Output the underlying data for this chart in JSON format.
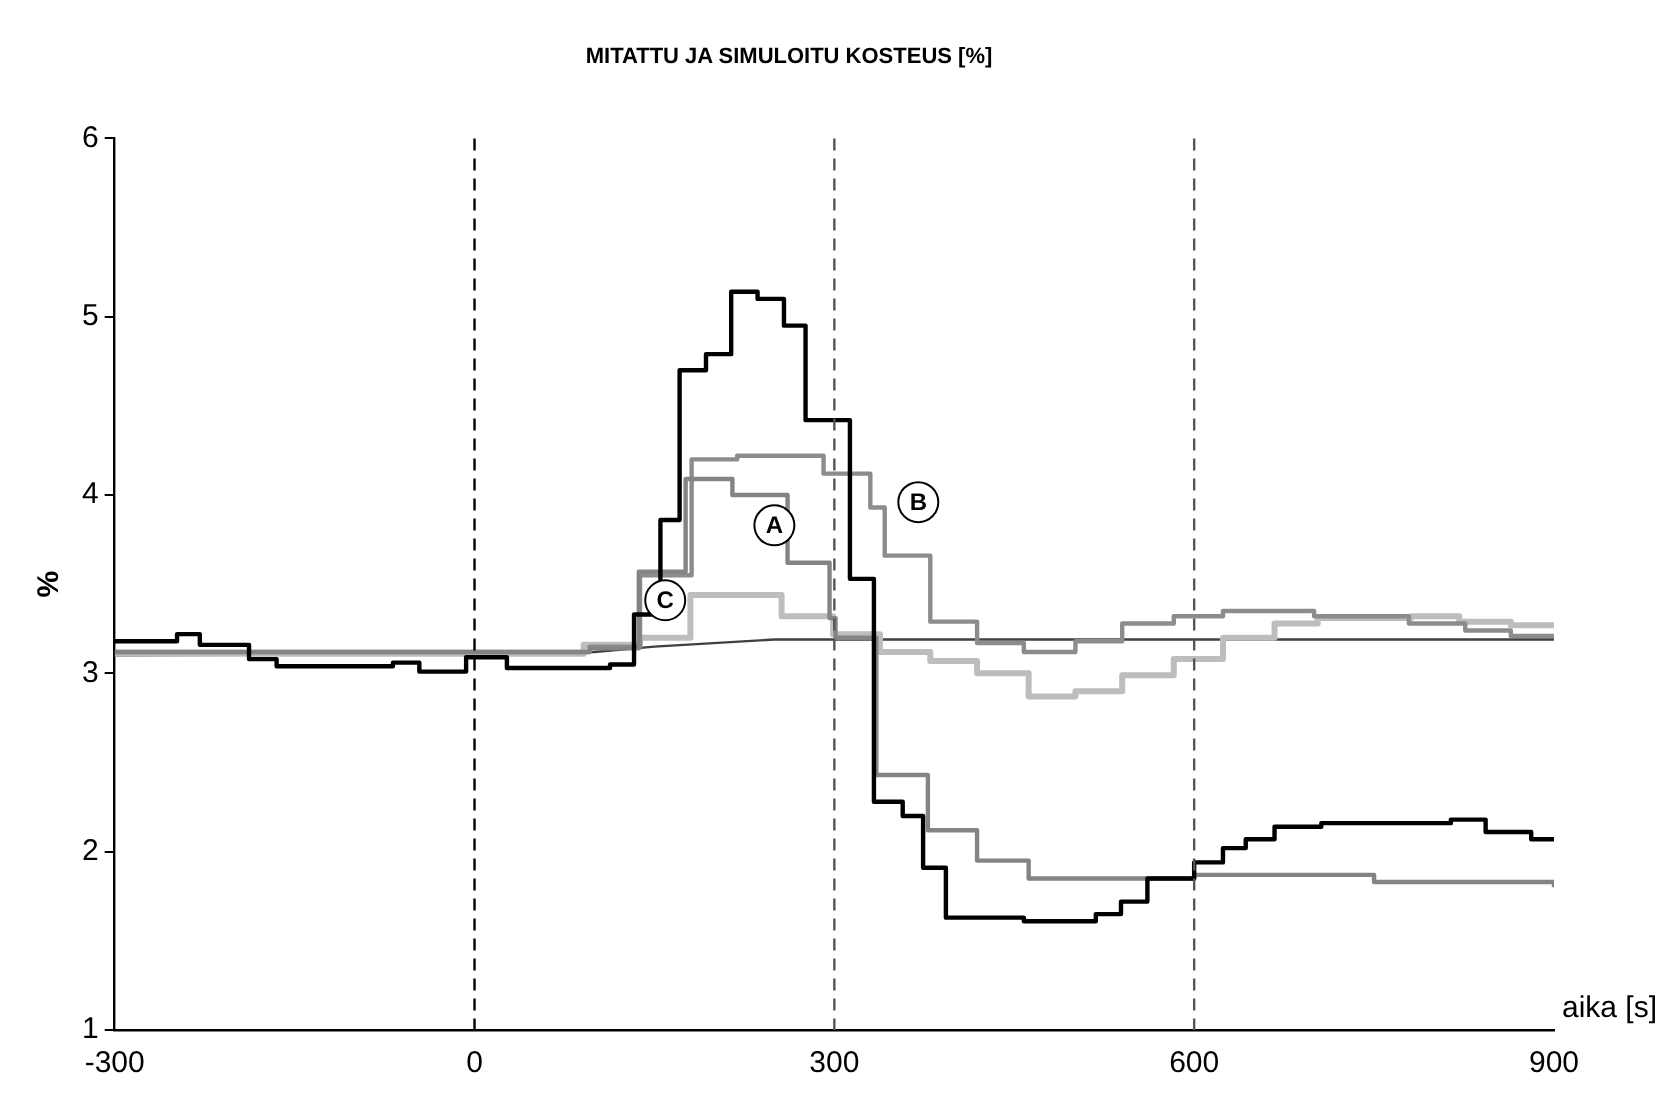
{
  "chart_data": {
    "type": "step",
    "title": "MITATTU JA SIMULOITU KOSTEUS [%]",
    "xlabel": "aika [s]",
    "ylabel": "%",
    "xlim": [
      -300,
      900
    ],
    "xticks": [
      -300,
      0,
      300,
      600,
      900
    ],
    "ylim": [
      1,
      6
    ],
    "yticks": [
      1,
      2,
      3,
      4,
      5,
      6
    ],
    "grid": false,
    "legend": false,
    "marker": "none",
    "series": [
      {
        "color": "#000000",
        "x": [
          -300,
          -248,
          -229,
          -188,
          -165,
          -68,
          -46,
          -7,
          27,
          113,
          133,
          155,
          171,
          193,
          214,
          236,
          258,
          276,
          313,
          333,
          357,
          374,
          393,
          458,
          518,
          539,
          561,
          600,
          624,
          643,
          667,
          706,
          814,
          843,
          881,
          900
        ],
        "values": [
          3.18,
          3.22,
          3.16,
          3.08,
          3.04,
          3.06,
          3.01,
          3.09,
          3.03,
          3.05,
          3.33,
          3.86,
          4.7,
          4.79,
          5.14,
          5.1,
          4.95,
          4.42,
          3.53,
          2.28,
          2.2,
          1.91,
          1.63,
          1.61,
          1.65,
          1.72,
          1.85,
          1.94,
          2.02,
          2.07,
          2.14,
          2.16,
          2.18,
          2.11,
          2.07,
          2.06
        ]
      },
      {
        "color": "#848484",
        "x": [
          -300,
          96,
          137,
          176,
          215,
          261,
          296,
          301,
          335,
          378,
          419,
          462,
          600,
          750,
          900
        ],
        "values": [
          3.12,
          3.14,
          3.57,
          4.09,
          4.0,
          3.62,
          3.31,
          3.2,
          2.43,
          2.12,
          1.95,
          1.85,
          1.87,
          1.83,
          1.8
        ]
      },
      {
        "color": "#8c8c8c",
        "x": [
          -300,
          96,
          138,
          181,
          219,
          291,
          330,
          342,
          380,
          419,
          458,
          501,
          540,
          583,
          624,
          700,
          779,
          826,
          864,
          900
        ],
        "values": [
          3.12,
          3.15,
          3.55,
          4.2,
          4.22,
          4.12,
          3.93,
          3.66,
          3.29,
          3.17,
          3.12,
          3.18,
          3.28,
          3.32,
          3.35,
          3.32,
          3.28,
          3.24,
          3.21,
          3.21
        ]
      },
      {
        "color": "#bdbdbd",
        "x": [
          -300,
          91,
          138,
          180,
          256,
          299,
          338,
          380,
          419,
          462,
          501,
          540,
          583,
          624,
          667,
          703,
          781,
          821,
          864,
          900
        ],
        "values": [
          3.11,
          3.16,
          3.2,
          3.44,
          3.32,
          3.22,
          3.12,
          3.07,
          3.0,
          2.87,
          2.9,
          2.99,
          3.08,
          3.2,
          3.28,
          3.31,
          3.32,
          3.29,
          3.27,
          3.27
        ]
      },
      {
        "type": "line",
        "color": "#404040",
        "x": [
          -300,
          100,
          150,
          250,
          900
        ],
        "values": [
          3.1,
          3.12,
          3.15,
          3.19,
          3.19
        ]
      }
    ],
    "ref_lines": [
      {
        "axis": "x",
        "value": 0,
        "color": "#000000",
        "line_style": "dashed"
      },
      {
        "axis": "x",
        "value": 300,
        "color": "#555555",
        "line_style": "dashed"
      },
      {
        "axis": "x",
        "value": 600,
        "color": "#555555",
        "line_style": "dashed"
      }
    ],
    "annotations": [
      {
        "text": "A",
        "x": 250,
        "y": 3.83
      },
      {
        "text": "B",
        "x": 370,
        "y": 3.96
      },
      {
        "text": "C",
        "x": 159,
        "y": 3.41
      }
    ]
  }
}
